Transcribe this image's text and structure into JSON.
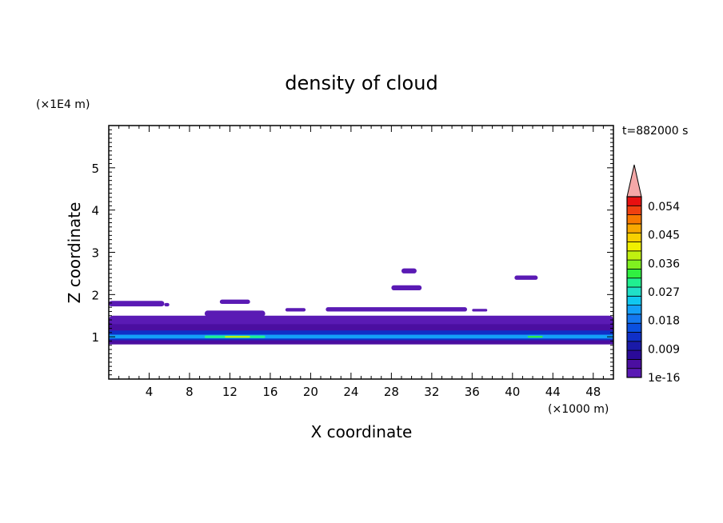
{
  "chart_data": {
    "type": "heatmap",
    "title": "density of cloud",
    "xlabel": "X coordinate",
    "ylabel": "Z coordinate",
    "x_unit": "(×1000 m)",
    "y_unit": "(×1E4 m)",
    "time_label": "t=882000 s",
    "xlim": [
      0,
      50
    ],
    "ylim": [
      0,
      6
    ],
    "x_ticks": [
      4,
      8,
      12,
      16,
      20,
      24,
      28,
      32,
      36,
      40,
      44,
      48
    ],
    "y_ticks": [
      1,
      2,
      3,
      4,
      5
    ],
    "colorbar": {
      "labels": [
        {
          "value": 1e-16,
          "text": "1e-16"
        },
        {
          "value": 0.009,
          "text": "0.009"
        },
        {
          "value": 0.018,
          "text": "0.018"
        },
        {
          "value": 0.027,
          "text": "0.027"
        },
        {
          "value": 0.036,
          "text": "0.036"
        },
        {
          "value": 0.045,
          "text": "0.045"
        },
        {
          "value": 0.054,
          "text": "0.054"
        }
      ],
      "levels": 20,
      "max_level": 0.057,
      "extend": "max",
      "colors": [
        "#5a1ab4",
        "#4b0ea0",
        "#2a0a98",
        "#1a1aa8",
        "#1030c8",
        "#0a50e0",
        "#1478f0",
        "#14a0f8",
        "#10c8f0",
        "#20e0c8",
        "#20f090",
        "#30f040",
        "#80f020",
        "#c0f010",
        "#f0f000",
        "#f8d000",
        "#f8a800",
        "#f87800",
        "#f04010",
        "#e81010"
      ],
      "extend_color": "#f4a8a8"
    },
    "features": [
      {
        "kind": "band",
        "x": [
          0,
          50
        ],
        "z": [
          0.82,
          1.35
        ],
        "level": 1
      },
      {
        "kind": "band",
        "x": [
          0,
          50
        ],
        "z": [
          0.92,
          1.15
        ],
        "level": 4
      },
      {
        "kind": "band",
        "x": [
          0,
          50
        ],
        "z": [
          0.96,
          1.05
        ],
        "level": 7
      },
      {
        "kind": "blob",
        "x": [
          9.5,
          15.5
        ],
        "z": [
          0.97,
          1.03
        ],
        "level": 10
      },
      {
        "kind": "blob",
        "x": [
          11.5,
          14.0
        ],
        "z": [
          0.98,
          1.02
        ],
        "level": 13
      },
      {
        "kind": "blob",
        "x": [
          41.5,
          43.0
        ],
        "z": [
          0.98,
          1.02
        ],
        "level": 11
      },
      {
        "kind": "blob",
        "x": [
          0,
          50
        ],
        "z": [
          1.3,
          1.5
        ],
        "level": 0
      },
      {
        "kind": "blob",
        "x": [
          0,
          5.5
        ],
        "z": [
          1.72,
          1.85
        ],
        "level": 0
      },
      {
        "kind": "blob",
        "x": [
          5.5,
          6.0
        ],
        "z": [
          1.72,
          1.8
        ],
        "level": 0
      },
      {
        "kind": "blob",
        "x": [
          11.0,
          14.0
        ],
        "z": [
          1.78,
          1.88
        ],
        "level": 0
      },
      {
        "kind": "blob",
        "x": [
          9.5,
          15.5
        ],
        "z": [
          1.48,
          1.62
        ],
        "level": 0
      },
      {
        "kind": "blob",
        "x": [
          17.5,
          19.5
        ],
        "z": [
          1.6,
          1.68
        ],
        "level": 0
      },
      {
        "kind": "blob",
        "x": [
          21.5,
          35.5
        ],
        "z": [
          1.6,
          1.7
        ],
        "level": 0
      },
      {
        "kind": "blob",
        "x": [
          36.0,
          37.5
        ],
        "z": [
          1.6,
          1.66
        ],
        "level": 0
      },
      {
        "kind": "blob",
        "x": [
          28.0,
          31.0
        ],
        "z": [
          2.1,
          2.22
        ],
        "level": 0
      },
      {
        "kind": "blob",
        "x": [
          29.0,
          30.5
        ],
        "z": [
          2.5,
          2.62
        ],
        "level": 0
      },
      {
        "kind": "blob",
        "x": [
          40.2,
          42.5
        ],
        "z": [
          2.35,
          2.45
        ],
        "level": 0
      }
    ]
  }
}
